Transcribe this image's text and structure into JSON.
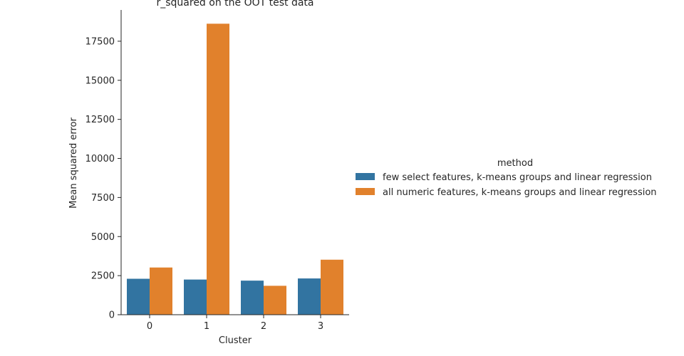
{
  "chart_data": {
    "type": "bar",
    "title": "r_squared on the OOT test data",
    "xlabel": "Cluster",
    "ylabel": "Mean squared error",
    "categories": [
      "0",
      "1",
      "2",
      "3"
    ],
    "ylim": [
      0,
      19500
    ],
    "yticks": [
      0,
      2500,
      5000,
      7500,
      10000,
      12500,
      15000,
      17500
    ],
    "yticklabels": [
      "0",
      "2500",
      "5000",
      "7500",
      "10000",
      "12500",
      "15000",
      "17500"
    ],
    "legend_title": "method",
    "legend_placement": "right",
    "grid": false,
    "series": [
      {
        "name": "few select features, k-means groups and linear regression",
        "color": "#3274a1",
        "values": [
          2300,
          2250,
          2180,
          2320
        ]
      },
      {
        "name": "all numeric features, k-means groups and linear regression",
        "color": "#e1812c",
        "values": [
          3020,
          18620,
          1850,
          3520
        ]
      }
    ]
  }
}
